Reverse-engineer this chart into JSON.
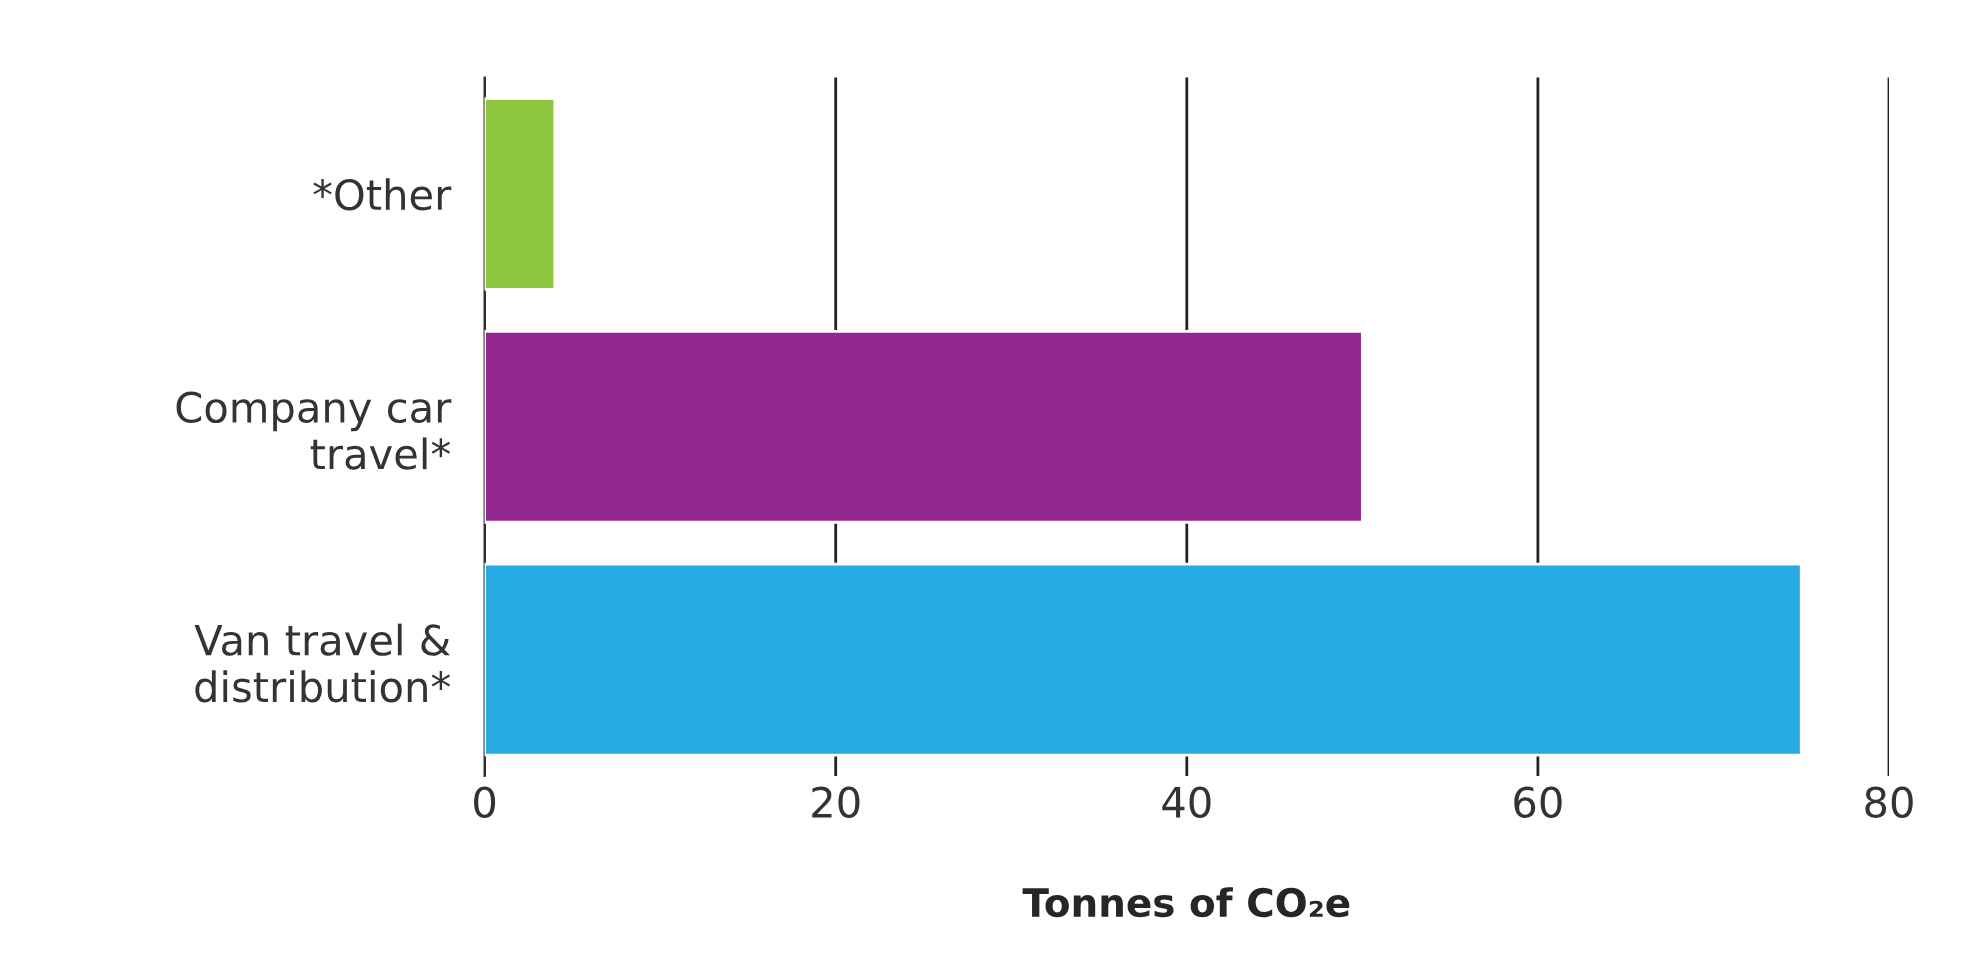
{
  "chart_data": {
    "type": "bar",
    "orientation": "horizontal",
    "categories": [
      "*Other",
      "Company car\ntravel*",
      "Van travel &\ndistribution*"
    ],
    "values": [
      4,
      50,
      75
    ],
    "colors": [
      "#8dc63f",
      "#92278f",
      "#27aae1"
    ],
    "xlim": [
      0,
      80
    ],
    "xticks": [
      0,
      20,
      40,
      60,
      80
    ],
    "grid": "x",
    "xlabel": "Tonnes of CO₂e"
  }
}
